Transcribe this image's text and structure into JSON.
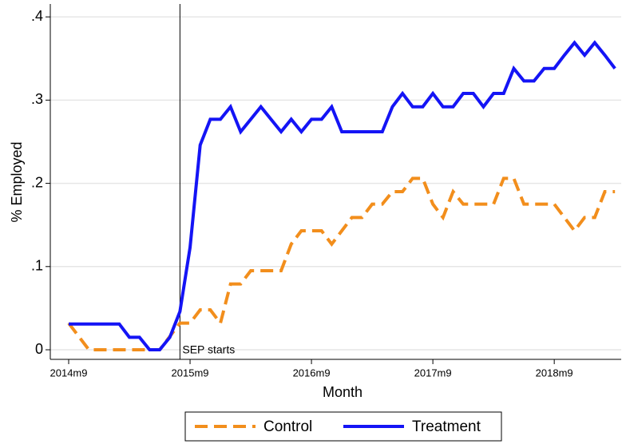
{
  "chart_data": {
    "type": "line",
    "x_label": "Month",
    "y_label": "% Employed",
    "categories": [
      "2014m9",
      null,
      null,
      null,
      null,
      null,
      null,
      null,
      null,
      null,
      null,
      null,
      "2015m9",
      null,
      null,
      null,
      null,
      null,
      null,
      null,
      null,
      null,
      null,
      null,
      "2016m9",
      null,
      null,
      null,
      null,
      null,
      null,
      null,
      null,
      null,
      null,
      null,
      "2017m9",
      null,
      null,
      null,
      null,
      null,
      null,
      null,
      null,
      null,
      null,
      null,
      "2018m9",
      null,
      null,
      null,
      null,
      null,
      null
    ],
    "series": [
      {
        "name": "Control",
        "color": "#f28e1c",
        "dashed": true,
        "values": [
          0.032,
          0.016,
          0,
          0,
          0,
          0,
          0,
          0,
          0,
          0,
          0.016,
          0.032,
          0.032,
          0.048,
          0.048,
          0.032,
          0.079,
          0.079,
          0.095,
          0.095,
          0.095,
          0.095,
          0.127,
          0.143,
          0.143,
          0.143,
          0.127,
          0.143,
          0.159,
          0.159,
          0.175,
          0.175,
          0.19,
          0.19,
          0.206,
          0.206,
          0.175,
          0.159,
          0.19,
          0.175,
          0.175,
          0.175,
          0.175,
          0.206,
          0.206,
          0.175,
          0.175,
          0.175,
          0.175,
          0.159,
          0.143,
          0.159,
          0.159,
          0.19,
          0.19
        ]
      },
      {
        "name": "Treatment",
        "color": "#1414f5",
        "dashed": false,
        "values": [
          0.031,
          0.031,
          0.031,
          0.031,
          0.031,
          0.031,
          0.015,
          0.015,
          0,
          0,
          0.015,
          0.046,
          0.123,
          0.246,
          0.277,
          0.277,
          0.292,
          0.262,
          0.277,
          0.292,
          0.277,
          0.262,
          0.277,
          0.262,
          0.277,
          0.277,
          0.292,
          0.262,
          0.262,
          0.262,
          0.262,
          0.262,
          0.292,
          0.308,
          0.292,
          0.292,
          0.308,
          0.292,
          0.292,
          0.308,
          0.308,
          0.292,
          0.308,
          0.308,
          0.338,
          0.323,
          0.323,
          0.338,
          0.338,
          0.354,
          0.369,
          0.354,
          0.369,
          0.354,
          0.338
        ]
      }
    ],
    "ylim": [
      -0.0115,
      0.4155
    ],
    "yticks": [
      0,
      {
        "value": 0.1,
        "label": ".1"
      },
      {
        "value": 0.2,
        "label": ".2"
      },
      {
        "value": 0.3,
        "label": ".3"
      },
      {
        "value": 0.4,
        "label": ".4"
      }
    ],
    "grid": true,
    "event": {
      "label": "SEP starts",
      "index": 11
    },
    "legend": "bottom"
  }
}
